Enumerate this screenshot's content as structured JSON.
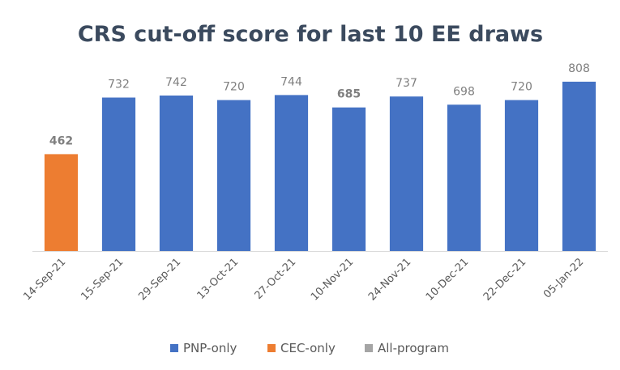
{
  "chart_data": {
    "type": "bar",
    "title": "CRS cut-off score for last 10 EE draws",
    "xlabel": "",
    "ylabel": "",
    "ylim": [
      0,
      850
    ],
    "grid": false,
    "legend_position": "bottom",
    "categories": [
      "14-Sep-21",
      "15-Sep-21",
      "29-Sep-21",
      "13-Oct-21",
      "27-Oct-21",
      "10-Nov-21",
      "24-Nov-21",
      "10-Dec-21",
      "22-Dec-21",
      "05-Jan-22"
    ],
    "values": [
      462,
      732,
      742,
      720,
      744,
      685,
      737,
      698,
      720,
      808
    ],
    "data_labels": [
      "462",
      "732",
      "742",
      "720",
      "744",
      "685",
      "737",
      "698",
      "720",
      "808"
    ],
    "bar_series": [
      "CEC-only",
      "PNP-only",
      "PNP-only",
      "PNP-only",
      "PNP-only",
      "PNP-only",
      "PNP-only",
      "PNP-only",
      "PNP-only",
      "PNP-only"
    ],
    "bold_labels": [
      0,
      5
    ],
    "series": [
      {
        "name": "PNP-only",
        "color": "#4472c4"
      },
      {
        "name": "CEC-only",
        "color": "#ed7d31"
      },
      {
        "name": "All-program",
        "color": "#a5a5a5"
      }
    ]
  }
}
